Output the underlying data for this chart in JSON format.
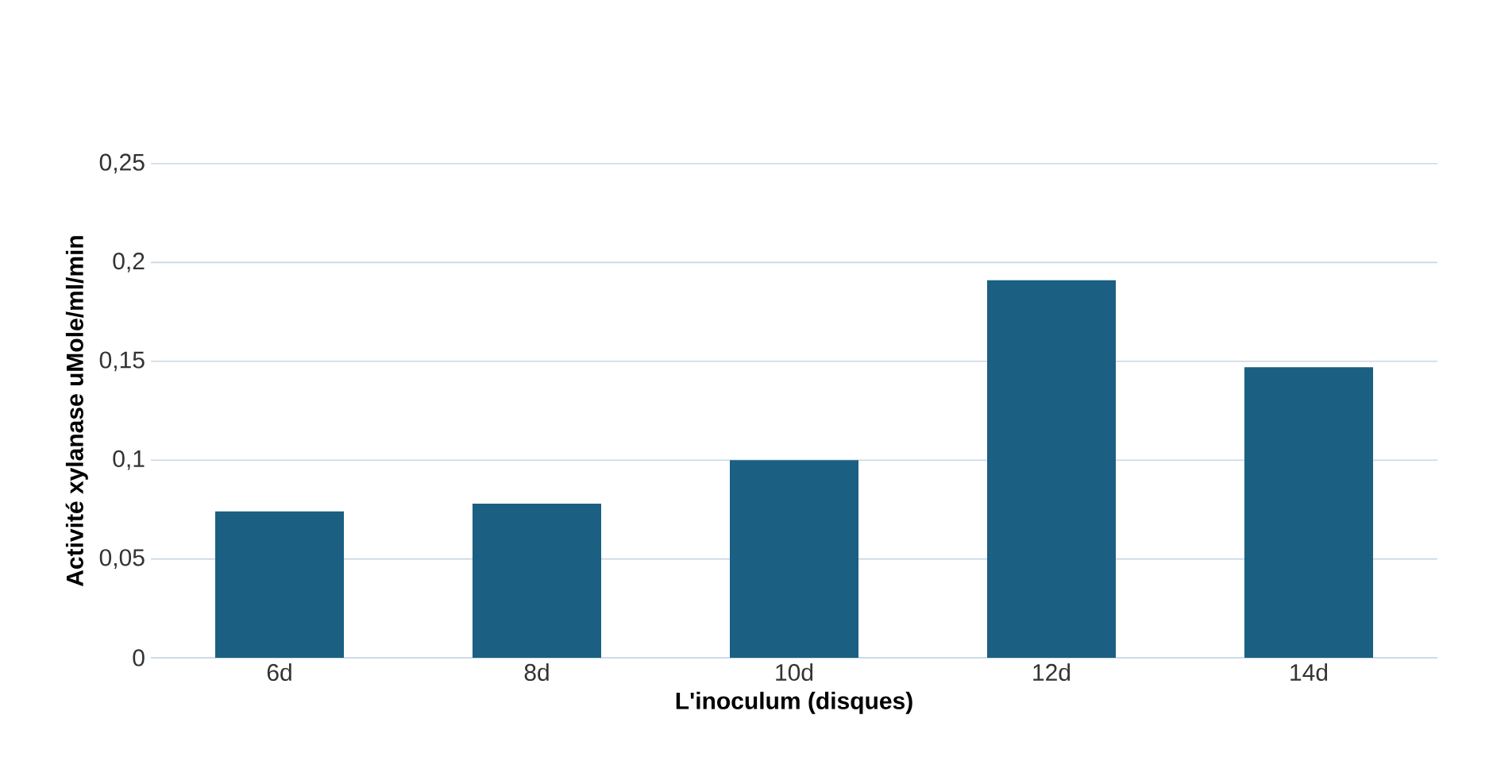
{
  "chart_data": {
    "type": "bar",
    "xlabel": "L'inoculum (disques)",
    "ylabel": "Activité xylanase uMole/ml/min",
    "categories": [
      "6d",
      "8d",
      "10d",
      "12d",
      "14d"
    ],
    "values": [
      0.074,
      0.078,
      0.1,
      0.191,
      0.147
    ],
    "color": "#1b5f82",
    "ylim": [
      0,
      0.25
    ],
    "yticks": [
      {
        "value": 0,
        "label": "0"
      },
      {
        "value": 0.05,
        "label": "0,05"
      },
      {
        "value": 0.1,
        "label": "0,1"
      },
      {
        "value": 0.15,
        "label": "0,15"
      },
      {
        "value": 0.2,
        "label": "0,2"
      },
      {
        "value": 0.25,
        "label": "0,25"
      }
    ],
    "grid": "y"
  }
}
